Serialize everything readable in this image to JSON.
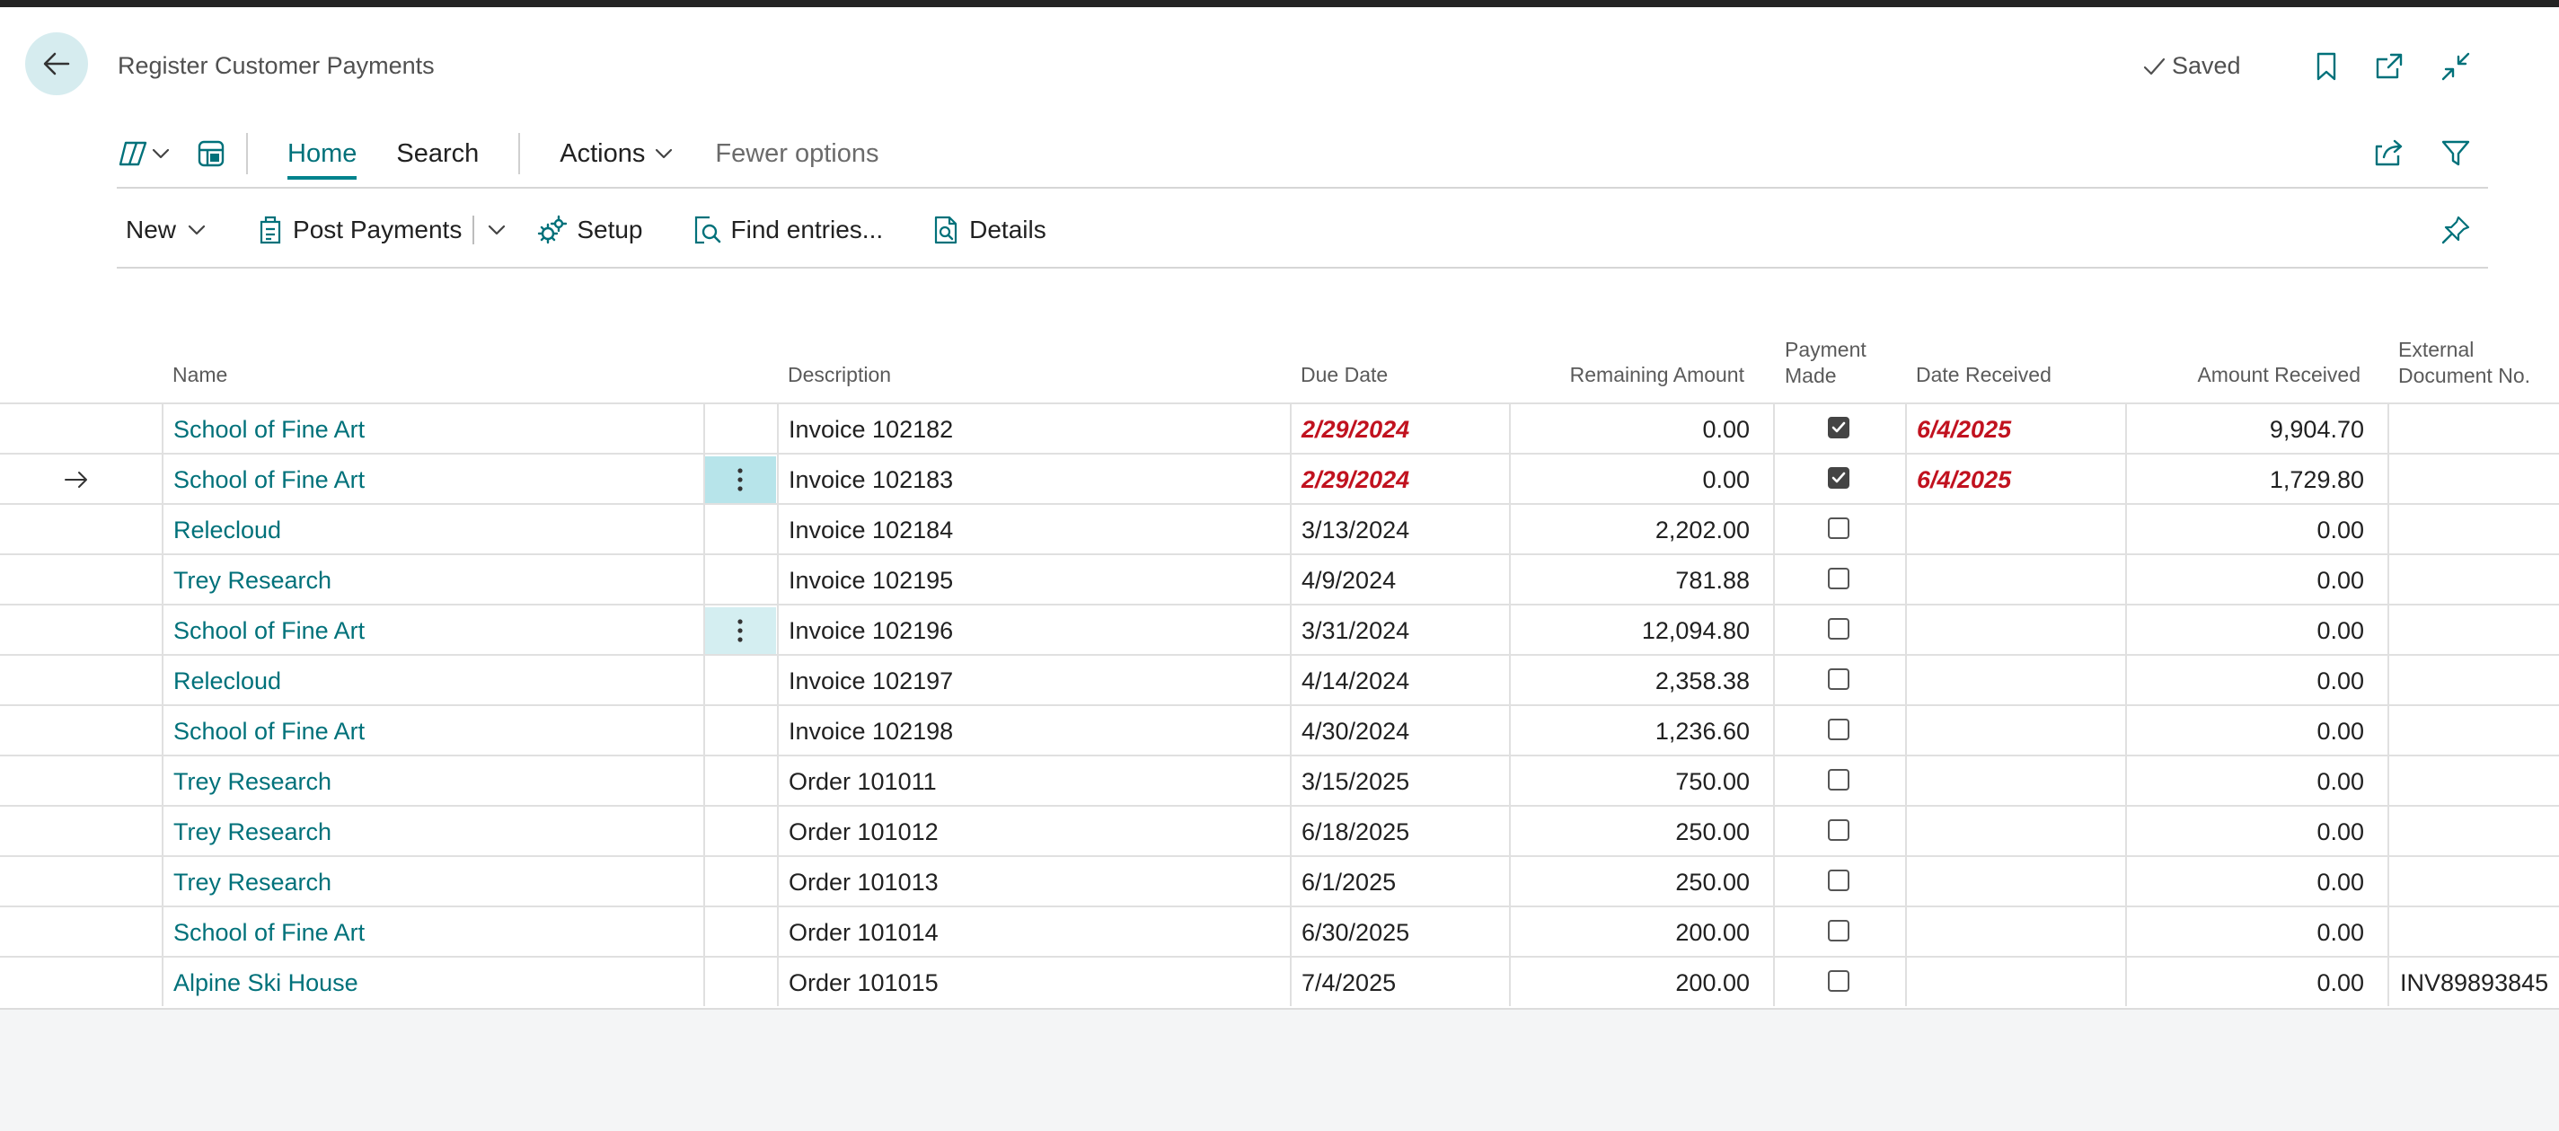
{
  "header": {
    "title": "Register Customer Payments",
    "saved": "Saved"
  },
  "tabs": {
    "home": "Home",
    "search": "Search",
    "actions": "Actions",
    "fewer": "Fewer options"
  },
  "actions": {
    "new": "New",
    "post_payments": "Post Payments",
    "setup": "Setup",
    "find_entries": "Find entries...",
    "details": "Details"
  },
  "columns": {
    "name": "Name",
    "description": "Description",
    "due_date": "Due Date",
    "remaining": "Remaining Amount",
    "payment_made_1": "Payment",
    "payment_made_2": "Made",
    "date_received": "Date Received",
    "amount_received": "Amount Received",
    "ext_doc_1": "External",
    "ext_doc_2": "Document No."
  },
  "rows": [
    {
      "name": "School of Fine Art",
      "description": "Invoice 102182",
      "due": "2/29/2024",
      "remaining": "0.00",
      "paid": true,
      "received": "6/4/2025",
      "amount": "9,904.70",
      "ext": ""
    },
    {
      "name": "School of Fine Art",
      "description": "Invoice 102183",
      "due": "2/29/2024",
      "remaining": "0.00",
      "paid": true,
      "received": "6/4/2025",
      "amount": "1,729.80",
      "ext": ""
    },
    {
      "name": "Relecloud",
      "description": "Invoice 102184",
      "due": "3/13/2024",
      "remaining": "2,202.00",
      "paid": false,
      "received": "",
      "amount": "0.00",
      "ext": ""
    },
    {
      "name": "Trey Research",
      "description": "Invoice 102195",
      "due": "4/9/2024",
      "remaining": "781.88",
      "paid": false,
      "received": "",
      "amount": "0.00",
      "ext": ""
    },
    {
      "name": "School of Fine Art",
      "description": "Invoice 102196",
      "due": "3/31/2024",
      "remaining": "12,094.80",
      "paid": false,
      "received": "",
      "amount": "0.00",
      "ext": ""
    },
    {
      "name": "Relecloud",
      "description": "Invoice 102197",
      "due": "4/14/2024",
      "remaining": "2,358.38",
      "paid": false,
      "received": "",
      "amount": "0.00",
      "ext": ""
    },
    {
      "name": "School of Fine Art",
      "description": "Invoice 102198",
      "due": "4/30/2024",
      "remaining": "1,236.60",
      "paid": false,
      "received": "",
      "amount": "0.00",
      "ext": ""
    },
    {
      "name": "Trey Research",
      "description": "Order 101011",
      "due": "3/15/2025",
      "remaining": "750.00",
      "paid": false,
      "received": "",
      "amount": "0.00",
      "ext": ""
    },
    {
      "name": "Trey Research",
      "description": "Order 101012",
      "due": "6/18/2025",
      "remaining": "250.00",
      "paid": false,
      "received": "",
      "amount": "0.00",
      "ext": ""
    },
    {
      "name": "Trey Research",
      "description": "Order 101013",
      "due": "6/1/2025",
      "remaining": "250.00",
      "paid": false,
      "received": "",
      "amount": "0.00",
      "ext": ""
    },
    {
      "name": "School of Fine Art",
      "description": "Order 101014",
      "due": "6/30/2025",
      "remaining": "200.00",
      "paid": false,
      "received": "",
      "amount": "0.00",
      "ext": ""
    },
    {
      "name": "Alpine Ski House",
      "description": "Order 101015",
      "due": "7/4/2025",
      "remaining": "200.00",
      "paid": false,
      "received": "",
      "amount": "0.00",
      "ext": "INV89893845"
    }
  ],
  "colors": {
    "accent": "#00717a",
    "overdue": "#c1121f"
  }
}
